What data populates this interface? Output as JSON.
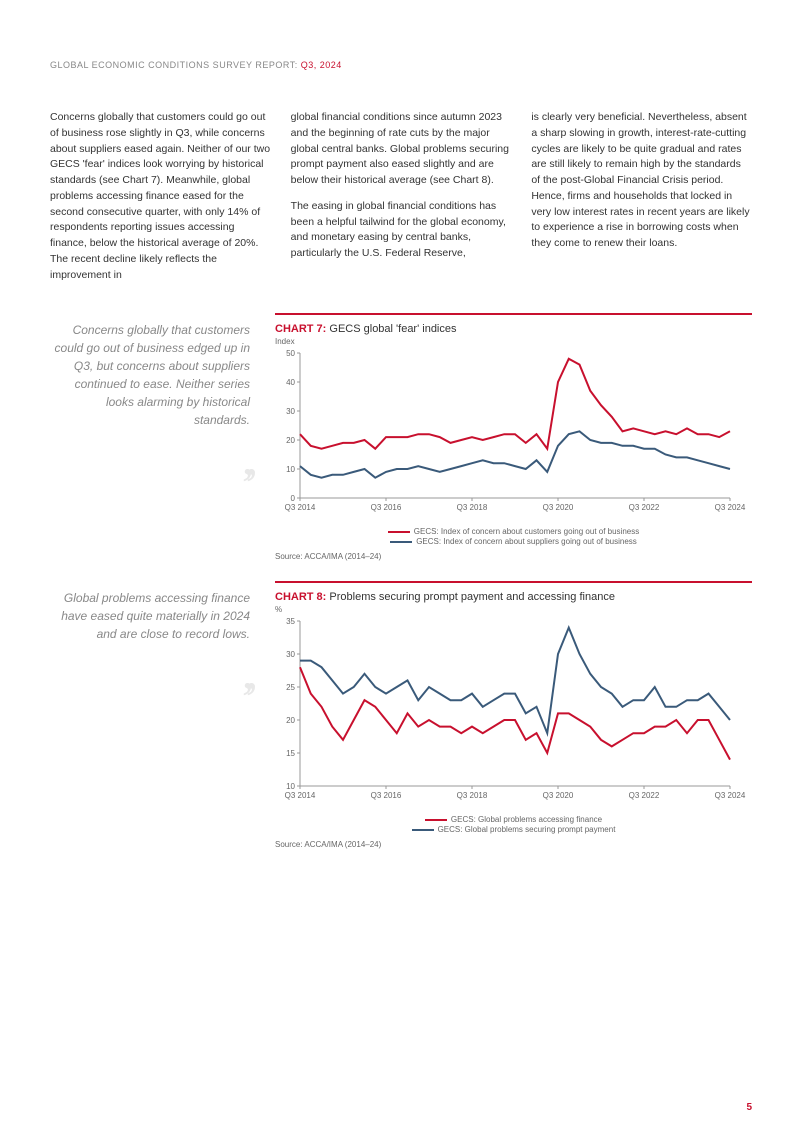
{
  "header": {
    "prefix": "GLOBAL ECONOMIC CONDITIONS SURVEY REPORT: ",
    "suffix": "Q3, 2024"
  },
  "body": {
    "col1": "Concerns globally that customers could go out of business rose slightly in Q3, while concerns about suppliers eased again. Neither of our two GECS 'fear' indices look worrying by historical standards (see Chart 7). Meanwhile, global problems accessing finance eased for the second consecutive quarter, with only 14% of respondents reporting issues accessing finance, below the historical average of 20%. The recent decline likely reflects the improvement in",
    "col2a": "global financial conditions since autumn 2023 and the beginning of rate cuts by the major global central banks. Global problems securing prompt payment also eased slightly and are below their historical average (see Chart 8).",
    "col2b": "The easing in global financial conditions has been a helpful tailwind for the global economy, and monetary easing by central banks, particularly the U.S. Federal Reserve,",
    "col3": "is clearly very beneficial. Nevertheless, absent a sharp slowing in growth, interest-rate-cutting cycles are likely to be quite gradual and rates are still likely to remain high by the standards of the post-Global Financial Crisis period. Hence, firms and households that locked in very low interest rates in recent years are likely to experience a rise in borrowing costs when they come to renew their loans."
  },
  "chart7": {
    "type": "line",
    "pullquote": "Concerns globally that customers could go out of business edged up in Q3, but concerns about suppliers continued to ease. Neither series looks alarming by historical standards.",
    "title_red": "CHART 7:",
    "title_rest": " GECS global 'fear' indices",
    "ylabel": "Index",
    "ylim": [
      0,
      50
    ],
    "ytick_step": 10,
    "x_labels": [
      "Q3 2014",
      "Q3 2016",
      "Q3 2018",
      "Q3 2020",
      "Q3 2022",
      "Q3 2024"
    ],
    "n_points": 41,
    "series": [
      {
        "name": "GECS: Index of concern about customers going out of business",
        "color": "#c8102e",
        "values": [
          22,
          18,
          17,
          18,
          19,
          19,
          20,
          17,
          21,
          21,
          21,
          22,
          22,
          21,
          19,
          20,
          21,
          20,
          21,
          22,
          22,
          19,
          22,
          17,
          40,
          48,
          46,
          37,
          32,
          28,
          23,
          24,
          23,
          22,
          23,
          22,
          24,
          22,
          22,
          21,
          23
        ]
      },
      {
        "name": "GECS: Index of concern about suppliers going out of business",
        "color": "#3a5a7a",
        "values": [
          11,
          8,
          7,
          8,
          8,
          9,
          10,
          7,
          9,
          10,
          10,
          11,
          10,
          9,
          10,
          11,
          12,
          13,
          12,
          12,
          11,
          10,
          13,
          9,
          18,
          22,
          23,
          20,
          19,
          19,
          18,
          18,
          17,
          17,
          15,
          14,
          14,
          13,
          12,
          11,
          10
        ]
      }
    ],
    "source": "Source: ACCA/IMA (2014–24)",
    "background_color": "#ffffff",
    "axis_color": "#999999",
    "tick_fontsize": 8
  },
  "chart8": {
    "type": "line",
    "pullquote": "Global problems accessing finance have eased quite materially in 2024 and are close to record lows.",
    "title_red": "CHART 8:",
    "title_rest": " Problems securing prompt payment and accessing finance",
    "ylabel": "%",
    "ylim": [
      10,
      35
    ],
    "ytick_step": 5,
    "x_labels": [
      "Q3 2014",
      "Q3 2016",
      "Q3 2018",
      "Q3 2020",
      "Q3 2022",
      "Q3 2024"
    ],
    "n_points": 41,
    "series": [
      {
        "name": "GECS: Global problems accessing finance",
        "color": "#c8102e",
        "values": [
          28,
          24,
          22,
          19,
          17,
          20,
          23,
          22,
          20,
          18,
          21,
          19,
          20,
          19,
          19,
          18,
          19,
          18,
          19,
          20,
          20,
          17,
          18,
          15,
          21,
          21,
          20,
          19,
          17,
          16,
          17,
          18,
          18,
          19,
          19,
          20,
          18,
          20,
          20,
          17,
          14
        ]
      },
      {
        "name": "GECS: Global problems securing prompt payment",
        "color": "#3a5a7a",
        "values": [
          29,
          29,
          28,
          26,
          24,
          25,
          27,
          25,
          24,
          25,
          26,
          23,
          25,
          24,
          23,
          23,
          24,
          22,
          23,
          24,
          24,
          21,
          22,
          18,
          30,
          34,
          30,
          27,
          25,
          24,
          22,
          23,
          23,
          25,
          22,
          22,
          23,
          23,
          24,
          22,
          20
        ]
      }
    ],
    "source": "Source: ACCA/IMA (2014–24)",
    "background_color": "#ffffff",
    "axis_color": "#999999",
    "tick_fontsize": 8
  },
  "page_number": "5"
}
